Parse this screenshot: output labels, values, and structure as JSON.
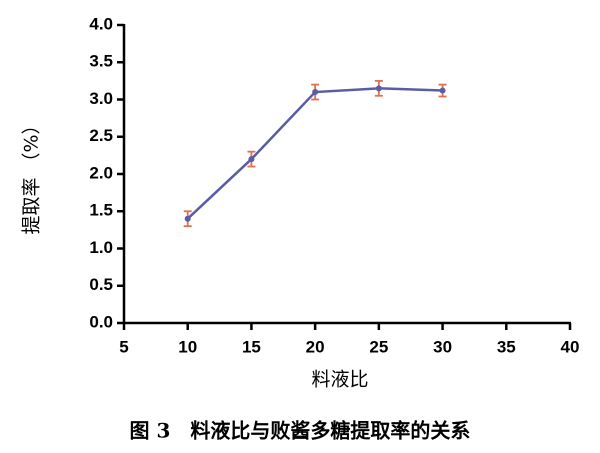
{
  "chart_data": {
    "type": "line",
    "caption": "图 3　料液比与败酱多糖提取率的关系",
    "x_label": "料液比",
    "y_label": "提取率 （%）",
    "x": [
      10,
      15,
      20,
      25,
      30
    ],
    "series": [
      {
        "color": "#5b5ba6",
        "error_color": "#e0704f",
        "values": [
          1.4,
          2.2,
          3.1,
          3.15,
          3.12
        ],
        "errors": [
          0.1,
          0.1,
          0.1,
          0.1,
          0.08
        ]
      }
    ],
    "xlim": [
      5,
      40
    ],
    "xticks": [
      5,
      10,
      15,
      20,
      25,
      30,
      35,
      40
    ],
    "ylim": [
      0,
      4
    ],
    "yticks": [
      {
        "value": 0,
        "label": "0.0"
      },
      0.5,
      {
        "value": 1,
        "label": "1.0"
      },
      1.5,
      {
        "value": 2,
        "label": "2.0"
      },
      2.5,
      {
        "value": 3,
        "label": "3.0"
      },
      3.5,
      {
        "value": 4,
        "label": "4.0"
      }
    ],
    "grid": false
  }
}
